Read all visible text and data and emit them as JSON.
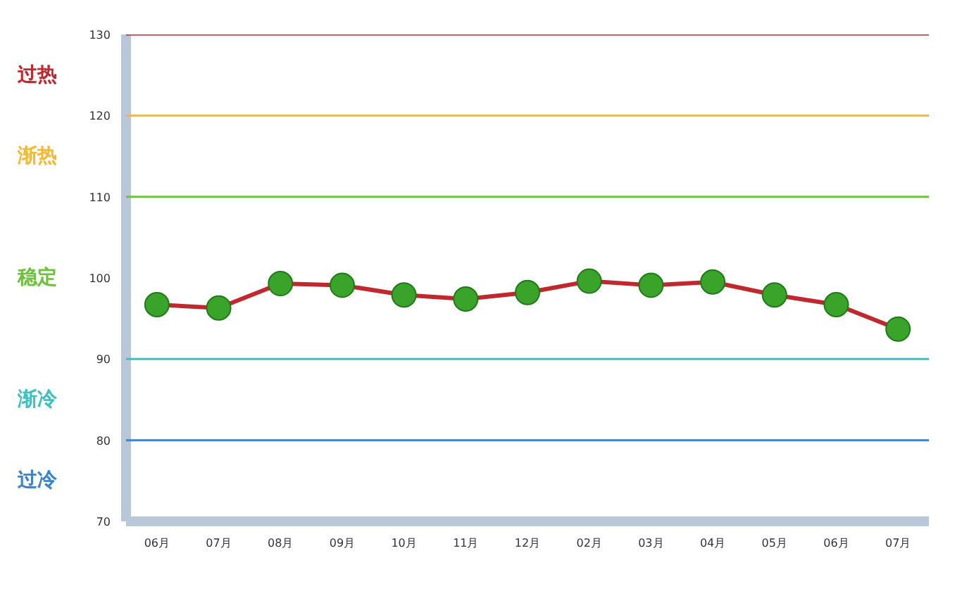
{
  "chart_data": {
    "type": "line",
    "categories": [
      "06月",
      "07月",
      "08月",
      "09月",
      "10月",
      "11月",
      "12月",
      "02月",
      "03月",
      "04月",
      "05月",
      "06月",
      "07月"
    ],
    "series": [
      {
        "color": "#c0282d",
        "values": [
          96.7,
          96.3,
          99.3,
          99.1,
          97.9,
          97.4,
          98.2,
          99.6,
          99.1,
          99.5,
          97.9,
          96.7,
          93.7
        ]
      }
    ],
    "marker": "circle",
    "ylim": [
      70,
      130
    ],
    "yticks": [
      70,
      80,
      90,
      100,
      110,
      120,
      130
    ],
    "grid": false,
    "ref_lines": [
      {
        "axis": "y",
        "value": 130,
        "color": "#c0282d"
      },
      {
        "axis": "y",
        "value": 120,
        "color": "#f5b82e"
      },
      {
        "axis": "y",
        "value": 110,
        "color": "#6cc23a"
      },
      {
        "axis": "y",
        "value": 90,
        "color": "#3cc0c0"
      },
      {
        "axis": "y",
        "value": 80,
        "color": "#3a84cc"
      }
    ],
    "annotations": [
      "过热",
      "渐热",
      "稳定",
      "渐冷",
      "过冷"
    ]
  }
}
